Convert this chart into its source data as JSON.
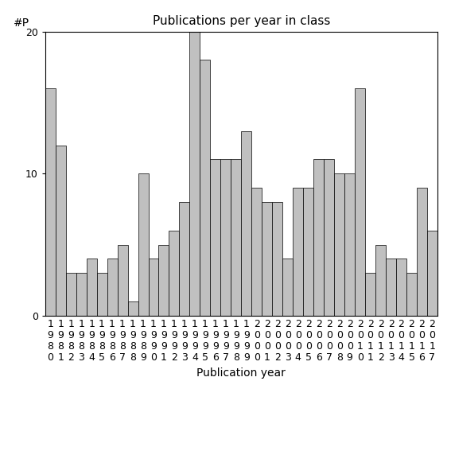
{
  "title": "Publications per year in class",
  "xlabel": "Publication year",
  "ylabel": "#P",
  "years": [
    1980,
    1981,
    1982,
    1983,
    1984,
    1985,
    1986,
    1987,
    1988,
    1989,
    1990,
    1991,
    1992,
    1993,
    1994,
    1995,
    1996,
    1997,
    1998,
    1999,
    2000,
    2001,
    2002,
    2003,
    2004,
    2005,
    2006,
    2007,
    2008,
    2009,
    2010,
    2011,
    2012,
    2013,
    2014,
    2015,
    2016,
    2017
  ],
  "values": [
    16,
    12,
    3,
    3,
    4,
    3,
    4,
    5,
    1,
    10,
    4,
    5,
    6,
    8,
    20,
    18,
    11,
    11,
    11,
    13,
    9,
    8,
    8,
    4,
    9,
    9,
    11,
    11,
    10,
    10,
    16,
    3,
    5,
    4,
    4,
    3,
    9,
    6
  ],
  "bar_color": "#c0c0c0",
  "bar_edgecolor": "#000000",
  "ylim": [
    0,
    20
  ],
  "yticks": [
    0,
    10,
    20
  ],
  "background_color": "#ffffff",
  "title_fontsize": 11,
  "axis_fontsize": 10,
  "tick_fontsize": 9,
  "ylabel_fontsize": 10
}
